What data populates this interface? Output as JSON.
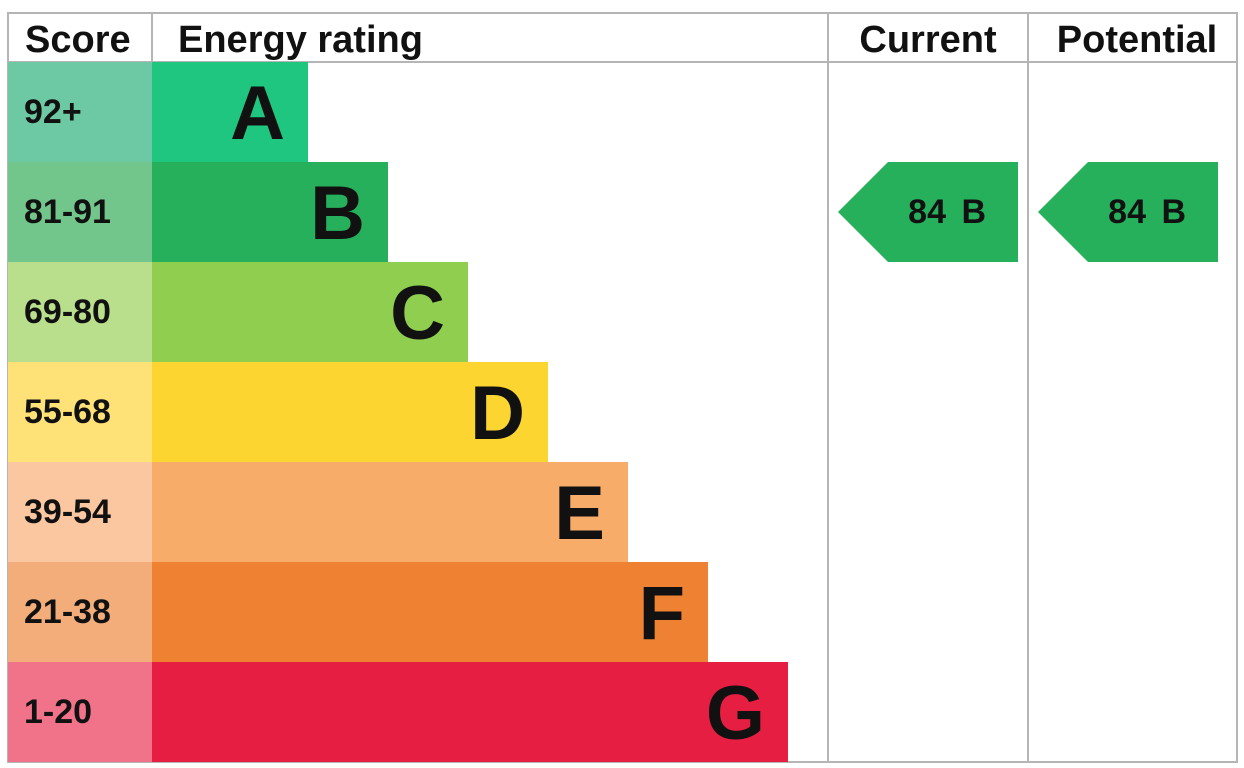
{
  "headers": {
    "score": "Score",
    "energy_rating": "Energy rating",
    "current": "Current",
    "potential": "Potential"
  },
  "chart_data": {
    "type": "bar",
    "title": "",
    "bands": [
      {
        "score": "92+",
        "letter": "A",
        "bar_color": "#1fc67f",
        "score_color": "#6dc9a3"
      },
      {
        "score": "81-91",
        "letter": "B",
        "bar_color": "#26b05c",
        "score_color": "#72c68b"
      },
      {
        "score": "69-80",
        "letter": "C",
        "bar_color": "#8fce4f",
        "score_color": "#b9df8c"
      },
      {
        "score": "55-68",
        "letter": "D",
        "bar_color": "#fdd530",
        "score_color": "#fee277"
      },
      {
        "score": "39-54",
        "letter": "E",
        "bar_color": "#f8ac6a",
        "score_color": "#fbc7a0"
      },
      {
        "score": "21-38",
        "letter": "F",
        "bar_color": "#ee8132",
        "score_color": "#f2ad7a"
      },
      {
        "score": "1-20",
        "letter": "G",
        "bar_color": "#e51e42",
        "score_color": "#f07389"
      }
    ],
    "current": {
      "value": "84",
      "letter": "B",
      "band_index": 1,
      "color": "#26b05c"
    },
    "potential": {
      "value": "84",
      "letter": "B",
      "band_index": 1,
      "color": "#26b05c"
    }
  }
}
